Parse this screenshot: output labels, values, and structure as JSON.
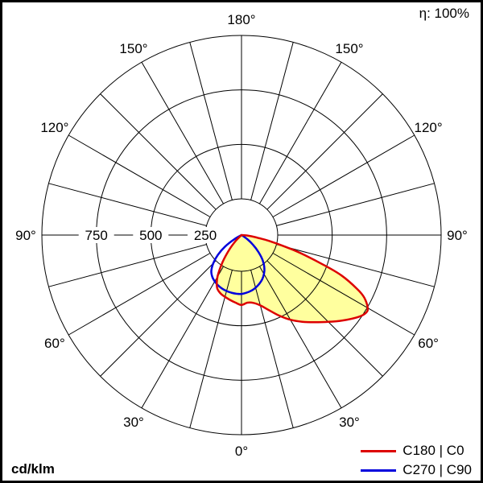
{
  "figure": {
    "efficiency_label": "η: 100%",
    "unit_label": "cd/klm"
  },
  "chart_data": {
    "type": "polar_line",
    "description": "Polar luminous intensity distribution (photometric) diagram",
    "unit": "cd/klm",
    "radial_ticks": [
      250,
      500,
      750
    ],
    "radial_max": 1000,
    "angle_step_deg": 15,
    "angle_labels_deg": [
      0,
      30,
      60,
      90,
      120,
      150,
      180
    ],
    "gamma_convention": "0 deg = nadir (bottom), 180 deg = zenith (top); positive gamma = right half (C0/C90 plane), negative gamma = left half (C180/C270 plane)",
    "grid": true,
    "legend_position": "bottom-right",
    "series": [
      {
        "name": "C180 | C0",
        "color": "#dd0000",
        "fill": "#ffff9e",
        "points": [
          [
            -50,
            0
          ],
          [
            -45,
            40
          ],
          [
            -40,
            95
          ],
          [
            -35,
            165
          ],
          [
            -30,
            240
          ],
          [
            -25,
            290
          ],
          [
            -20,
            310
          ],
          [
            -15,
            320
          ],
          [
            -10,
            330
          ],
          [
            -5,
            340
          ],
          [
            0,
            350
          ],
          [
            5,
            340
          ],
          [
            10,
            345
          ],
          [
            15,
            365
          ],
          [
            20,
            400
          ],
          [
            25,
            445
          ],
          [
            30,
            490
          ],
          [
            35,
            530
          ],
          [
            40,
            570
          ],
          [
            45,
            615
          ],
          [
            50,
            665
          ],
          [
            55,
            715
          ],
          [
            58,
            735
          ],
          [
            60,
            730
          ],
          [
            63,
            690
          ],
          [
            65,
            640
          ],
          [
            68,
            540
          ],
          [
            70,
            440
          ],
          [
            73,
            310
          ],
          [
            75,
            230
          ],
          [
            78,
            140
          ],
          [
            80,
            90
          ],
          [
            83,
            50
          ],
          [
            85,
            30
          ],
          [
            90,
            0
          ]
        ]
      },
      {
        "name": "C270 | C90",
        "color": "#0000dd",
        "fill": null,
        "points": [
          [
            -65,
            0
          ],
          [
            -60,
            40
          ],
          [
            -55,
            100
          ],
          [
            -50,
            155
          ],
          [
            -45,
            200
          ],
          [
            -40,
            235
          ],
          [
            -35,
            255
          ],
          [
            -30,
            268
          ],
          [
            -25,
            278
          ],
          [
            -20,
            285
          ],
          [
            -15,
            290
          ],
          [
            -10,
            293
          ],
          [
            -5,
            295
          ],
          [
            0,
            295
          ],
          [
            5,
            290
          ],
          [
            10,
            283
          ],
          [
            15,
            273
          ],
          [
            20,
            260
          ],
          [
            25,
            245
          ],
          [
            30,
            225
          ],
          [
            35,
            200
          ],
          [
            40,
            165
          ],
          [
            45,
            120
          ],
          [
            50,
            75
          ],
          [
            55,
            35
          ],
          [
            60,
            0
          ]
        ]
      }
    ]
  }
}
